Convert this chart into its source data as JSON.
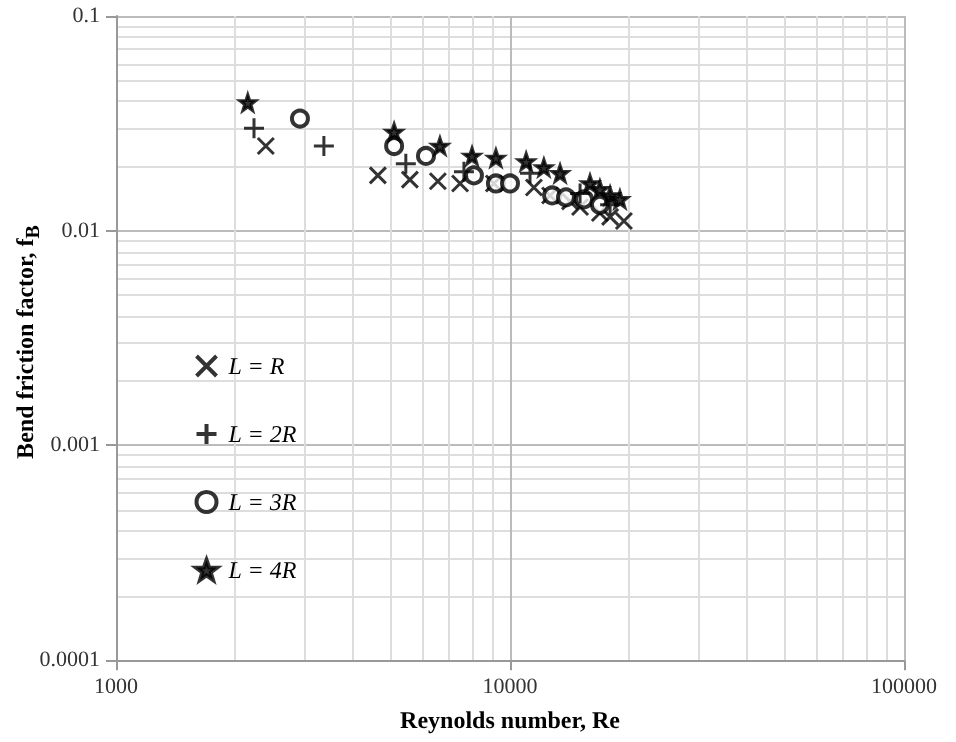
{
  "chart_data": {
    "type": "scatter",
    "xlabel": "Reynolds number, Re",
    "ylabel": "Bend friction factor, f$_{B}$",
    "log": "xy",
    "grid": true,
    "legend": "left",
    "xlim": [
      1000,
      100000
    ],
    "xticks": [
      1000,
      10000,
      100000
    ],
    "ylim": [
      0.0001,
      0.1
    ],
    "yticks": [
      0.0001,
      0.001,
      0.01,
      0.1
    ],
    "series": [
      {
        "name": "L = R",
        "color": "#000000",
        "marker": "x",
        "x": [
          2400,
          4620,
          5570,
          6560,
          7470,
          9100,
          11500,
          12640,
          14200,
          15060,
          16910,
          17950,
          19460
        ],
        "values": [
          0.0248,
          0.0181,
          0.0173,
          0.017,
          0.0166,
          0.0166,
          0.0159,
          0.0146,
          0.0137,
          0.0129,
          0.0121,
          0.0116,
          0.0111
        ]
      },
      {
        "name": "L = 2R",
        "color": "#000000",
        "marker": "cross",
        "x": [
          2240,
          3370,
          5440,
          7640,
          11240,
          15060,
          17950
        ],
        "values": [
          0.03,
          0.0248,
          0.0205,
          0.0188,
          0.0185,
          0.0149,
          0.0132
        ]
      },
      {
        "name": "L = 3R",
        "color": "#000000",
        "marker": "circle",
        "x": [
          2930,
          5080,
          6120,
          8100,
          9210,
          10000,
          12790,
          13870,
          15410,
          16910
        ],
        "values": [
          0.0333,
          0.0248,
          0.0223,
          0.0181,
          0.0166,
          0.0166,
          0.0146,
          0.0143,
          0.014,
          0.0132
        ]
      },
      {
        "name": "L = 4R",
        "color": "#000000",
        "marker": "star",
        "x": [
          2160,
          5080,
          6640,
          8010,
          9210,
          10990,
          12190,
          13400,
          15960,
          16910,
          17950,
          19010
        ],
        "values": [
          0.0395,
          0.0288,
          0.0248,
          0.0223,
          0.0218,
          0.021,
          0.0197,
          0.0185,
          0.0166,
          0.0156,
          0.0146,
          0.014
        ]
      }
    ]
  }
}
